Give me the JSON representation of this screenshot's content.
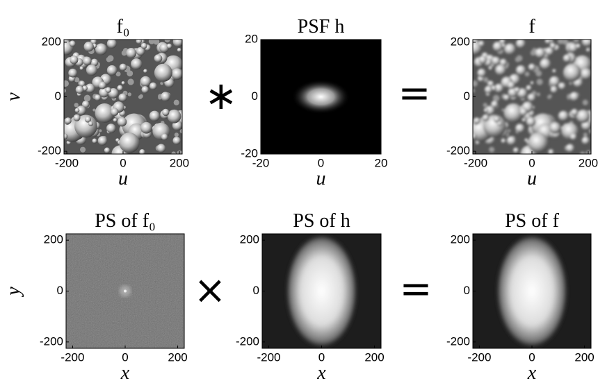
{
  "chart_data": [
    {
      "type": "image",
      "title": "f₀",
      "xlabel": "u",
      "ylabel": "v",
      "xlim": [
        -210,
        210
      ],
      "ylim": [
        -210,
        210
      ],
      "xticks": [
        -200,
        0,
        200
      ],
      "yticks": [
        -200,
        0,
        200
      ]
    },
    {
      "type": "image",
      "title": "PSF h",
      "xlabel": "u",
      "xlim": [
        -20,
        20
      ],
      "ylim": [
        -20,
        20
      ],
      "xticks": [
        -20,
        0,
        20
      ],
      "yticks": [
        -20,
        0,
        20
      ]
    },
    {
      "type": "image",
      "title": "f",
      "xlabel": "u",
      "xlim": [
        -210,
        210
      ],
      "ylim": [
        -210,
        210
      ],
      "xticks": [
        -200,
        0,
        200
      ],
      "yticks": [
        -200,
        0,
        200
      ]
    },
    {
      "type": "image",
      "title": "PS of f₀",
      "xlabel": "x",
      "ylabel": "y",
      "xlim": [
        -225,
        225
      ],
      "ylim": [
        -225,
        225
      ],
      "xticks": [
        -200,
        0,
        200
      ],
      "yticks": [
        -200,
        0,
        200
      ]
    },
    {
      "type": "image",
      "title": "PS of h",
      "xlabel": "x",
      "xlim": [
        -225,
        225
      ],
      "ylim": [
        -225,
        225
      ],
      "xticks": [
        -200,
        0,
        200
      ],
      "yticks": [
        -200,
        0,
        200
      ]
    },
    {
      "type": "image",
      "title": "PS of f",
      "xlabel": "x",
      "xlim": [
        -225,
        225
      ],
      "ylim": [
        -225,
        225
      ],
      "xticks": [
        -200,
        0,
        200
      ],
      "yticks": [
        -200,
        0,
        200
      ]
    }
  ],
  "operators": [
    "∗",
    "=",
    "×",
    "="
  ]
}
